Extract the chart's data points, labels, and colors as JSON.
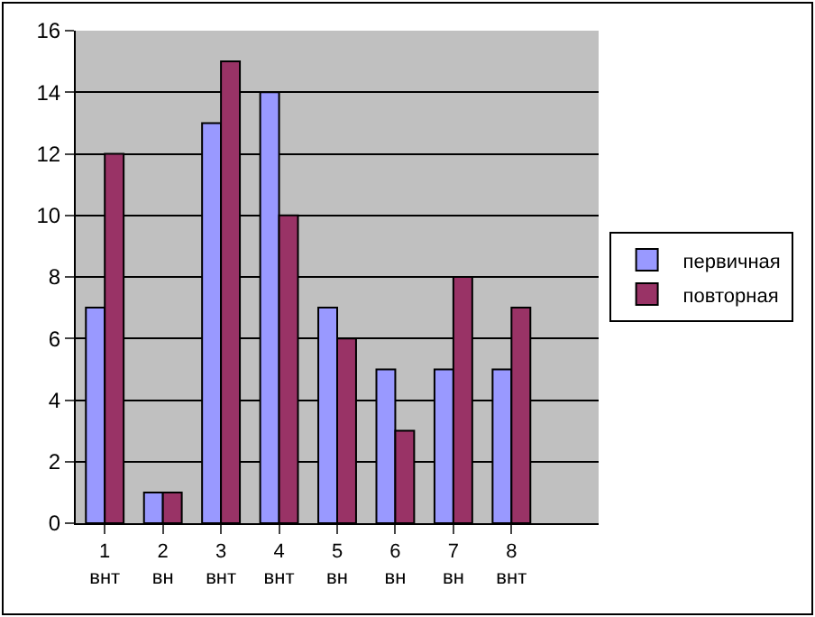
{
  "chart_data": {
    "type": "bar",
    "categories": [
      "1\nвнт",
      "2\nвн",
      "3\nвнт",
      "4\nвнт",
      "5\nвн",
      "6\nвн",
      "7\nвн",
      "8\nвнт",
      null
    ],
    "series": [
      {
        "name": "первичная",
        "color": "#9999ff",
        "values": [
          7,
          1,
          13,
          14,
          7,
          5,
          5,
          5,
          null
        ]
      },
      {
        "name": "повторная",
        "color": "#993366",
        "values": [
          12,
          1,
          15,
          10,
          6,
          3,
          8,
          7,
          null
        ]
      }
    ],
    "ylim": [
      0,
      16
    ],
    "yticks": [
      0,
      2,
      4,
      6,
      8,
      10,
      12,
      14,
      16
    ],
    "grid": "y",
    "legend": "right"
  }
}
